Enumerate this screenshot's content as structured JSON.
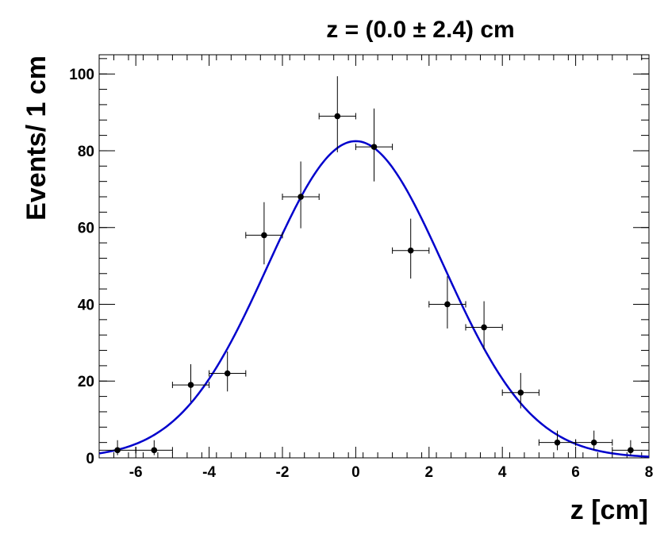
{
  "chart_data": {
    "type": "scatter",
    "title": "z = (0.0 ±  2.4) cm",
    "xlabel": "z [cm]",
    "ylabel": "Events/ 1 cm",
    "xlim": [
      -7,
      8
    ],
    "ylim": [
      0,
      105
    ],
    "x_ticks": [
      -6,
      -4,
      -2,
      0,
      2,
      4,
      6,
      8
    ],
    "y_ticks": [
      0,
      20,
      40,
      60,
      80,
      100
    ],
    "grid": false,
    "legend": "none",
    "marker_color": "#000000",
    "fit_color": "#0000cc",
    "series": [
      {
        "x": [
          -6.5,
          -5.5,
          -4.5,
          -3.5,
          -2.5,
          -1.5,
          -0.5,
          0.5,
          1.5,
          2.5,
          3.5,
          4.5,
          5.5,
          6.5,
          7.5
        ],
        "y": [
          2,
          2,
          19,
          22,
          58,
          68,
          89,
          81,
          54,
          40,
          34,
          17,
          4,
          4,
          2
        ],
        "x_err": 0.5,
        "y_err_low": [
          1.3,
          1.3,
          4.4,
          4.7,
          7.6,
          8.2,
          9.4,
          9.0,
          7.3,
          6.3,
          5.8,
          4.1,
          2.0,
          2.0,
          1.3
        ],
        "y_err_high": [
          2.6,
          2.6,
          5.4,
          5.7,
          8.6,
          9.2,
          10.4,
          10.0,
          8.3,
          7.3,
          6.8,
          5.1,
          3.1,
          3.1,
          2.6
        ]
      }
    ],
    "fit": {
      "type": "gaussian",
      "amplitude": 82.5,
      "mean": 0.0,
      "sigma": 2.4
    }
  }
}
